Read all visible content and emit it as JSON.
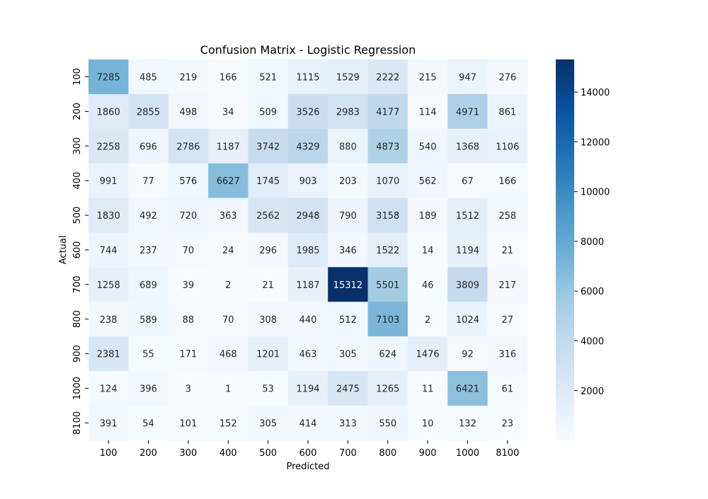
{
  "chart_data": {
    "type": "heatmap",
    "title": "Confusion Matrix - Logistic Regression",
    "xlabel": "Predicted",
    "ylabel": "Actual",
    "x_categories": [
      "100",
      "200",
      "300",
      "400",
      "500",
      "600",
      "700",
      "800",
      "900",
      "1000",
      "8100"
    ],
    "y_categories": [
      "100",
      "200",
      "300",
      "400",
      "500",
      "600",
      "700",
      "800",
      "900",
      "1000",
      "8100"
    ],
    "values": [
      [
        7285,
        485,
        219,
        166,
        521,
        1115,
        1529,
        2222,
        215,
        947,
        276
      ],
      [
        1860,
        2855,
        498,
        34,
        509,
        3526,
        2983,
        4177,
        114,
        4971,
        861
      ],
      [
        2258,
        696,
        2786,
        1187,
        3742,
        4329,
        880,
        4873,
        540,
        1368,
        1106
      ],
      [
        991,
        77,
        576,
        6627,
        1745,
        903,
        203,
        1070,
        562,
        67,
        166
      ],
      [
        1830,
        492,
        720,
        363,
        2562,
        2948,
        790,
        3158,
        189,
        1512,
        258
      ],
      [
        744,
        237,
        70,
        24,
        296,
        1985,
        346,
        1522,
        14,
        1194,
        21
      ],
      [
        1258,
        689,
        39,
        2,
        21,
        1187,
        15312,
        5501,
        46,
        3809,
        217
      ],
      [
        238,
        589,
        88,
        70,
        308,
        440,
        512,
        7103,
        2,
        1024,
        27
      ],
      [
        2381,
        55,
        171,
        468,
        1201,
        463,
        305,
        624,
        1476,
        92,
        316
      ],
      [
        124,
        396,
        3,
        1,
        53,
        1194,
        2475,
        1265,
        11,
        6421,
        61
      ],
      [
        391,
        54,
        101,
        152,
        305,
        414,
        313,
        550,
        10,
        132,
        23
      ]
    ],
    "vmin": 1,
    "vmax": 15312,
    "colormap": "Blues",
    "colorbar_ticks": [
      "2000",
      "4000",
      "6000",
      "8000",
      "10000",
      "12000",
      "14000"
    ],
    "colorbar_tick_values": [
      2000,
      4000,
      6000,
      8000,
      10000,
      12000,
      14000
    ]
  }
}
